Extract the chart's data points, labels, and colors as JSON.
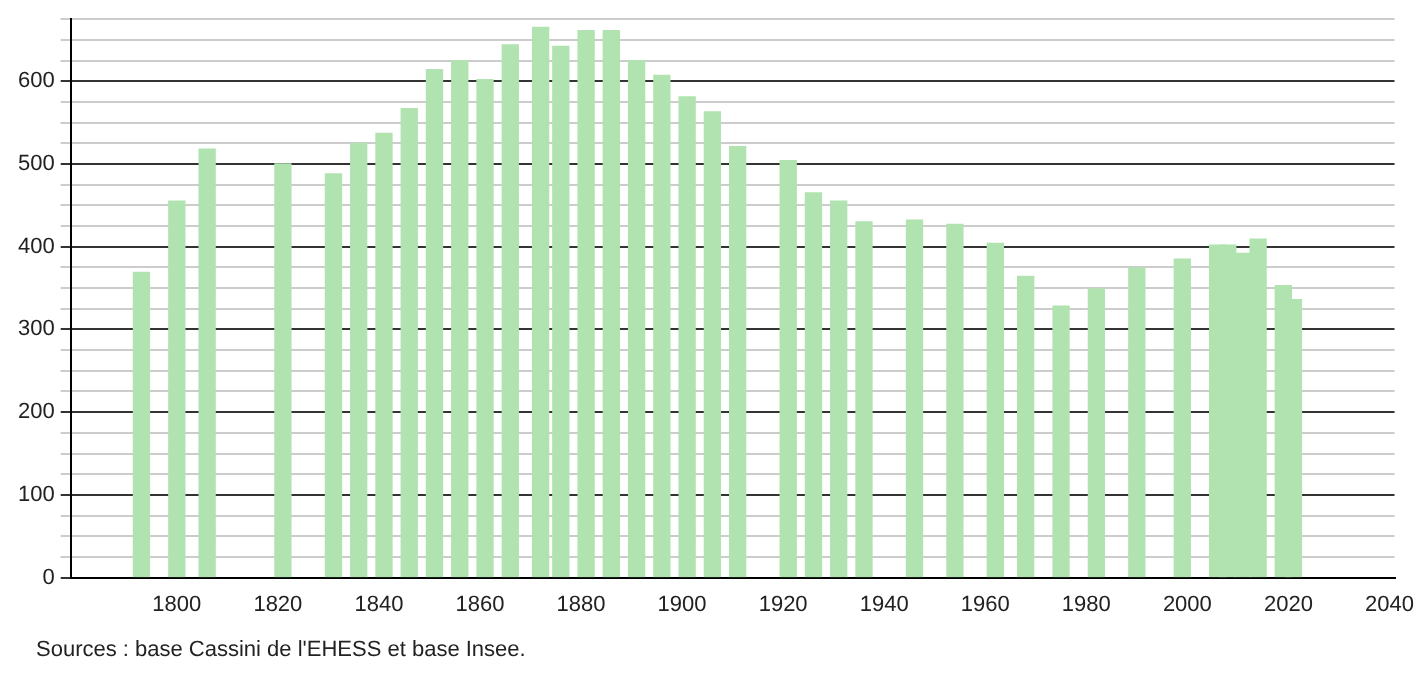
{
  "chart_data": {
    "type": "bar",
    "x": [
      1793,
      1800,
      1806,
      1821,
      1831,
      1836,
      1841,
      1846,
      1851,
      1856,
      1861,
      1866,
      1872,
      1876,
      1881,
      1886,
      1891,
      1896,
      1901,
      1906,
      1911,
      1921,
      1926,
      1931,
      1936,
      1946,
      1954,
      1962,
      1968,
      1975,
      1982,
      1990,
      1999,
      2006,
      2008,
      2011,
      2014,
      2019,
      2021
    ],
    "values": [
      369,
      455,
      518,
      500,
      488,
      525,
      537,
      567,
      614,
      625,
      602,
      644,
      665,
      642,
      661,
      661,
      625,
      607,
      581,
      563,
      521,
      504,
      465,
      455,
      430,
      432,
      427,
      404,
      364,
      328,
      349,
      374,
      385,
      402,
      402,
      392,
      409,
      353,
      336
    ],
    "color": "#b0e3b0",
    "xlim": [
      1779,
      2041
    ],
    "xticks": [
      1800,
      1820,
      1840,
      1860,
      1880,
      1900,
      1920,
      1940,
      1960,
      1980,
      2000,
      2020,
      2040
    ],
    "ylim": [
      0,
      675
    ],
    "yticks": [
      0,
      {
        "value": 25,
        "label": null
      },
      {
        "value": 50,
        "label": null
      },
      {
        "value": 75,
        "label": null
      },
      100,
      {
        "value": 125,
        "label": null
      },
      {
        "value": 150,
        "label": null
      },
      {
        "value": 175,
        "label": null
      },
      200,
      {
        "value": 225,
        "label": null
      },
      {
        "value": 250,
        "label": null
      },
      {
        "value": 275,
        "label": null
      },
      300,
      {
        "value": 325,
        "label": null
      },
      {
        "value": 350,
        "label": null
      },
      {
        "value": 375,
        "label": null
      },
      400,
      {
        "value": 425,
        "label": null
      },
      {
        "value": 450,
        "label": null
      },
      {
        "value": 475,
        "label": null
      },
      500,
      {
        "value": 525,
        "label": null
      },
      {
        "value": 550,
        "label": null
      },
      {
        "value": 575,
        "label": null
      },
      600,
      {
        "value": 625,
        "label": null
      },
      {
        "value": 650,
        "label": null
      },
      {
        "value": 675,
        "label": null
      }
    ],
    "grid": "y",
    "legend": false,
    "annotations": [
      "Sources : base Cassini de l'EHESS et base Insee."
    ]
  }
}
